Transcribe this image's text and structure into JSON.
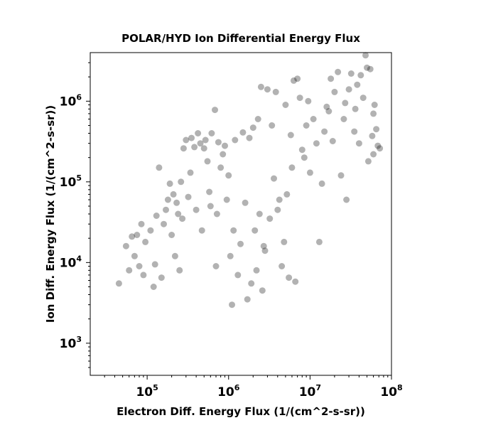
{
  "chart_data": {
    "type": "scatter",
    "title": "POLAR/HYD  Ion Differential Energy Flux",
    "xlabel": "Electron Diff. Energy Flux (1/(cm^2-s-sr))",
    "ylabel": "Ion Diff. Energy Flux (1/(cm^2-s-sr))",
    "x_scale": "log",
    "y_scale": "log",
    "xlim": [
      20000,
      100000000
    ],
    "ylim": [
      400,
      4000000
    ],
    "x_ticks": [
      {
        "value": 100000,
        "base": "10",
        "exp": "5"
      },
      {
        "value": 1000000,
        "base": "10",
        "exp": "6"
      },
      {
        "value": 10000000,
        "base": "10",
        "exp": "7"
      },
      {
        "value": 100000000,
        "base": "10",
        "exp": "8"
      }
    ],
    "y_ticks": [
      {
        "value": 1000,
        "base": "10",
        "exp": "3"
      },
      {
        "value": 10000,
        "base": "10",
        "exp": "4"
      },
      {
        "value": 100000,
        "base": "10",
        "exp": "5"
      },
      {
        "value": 1000000,
        "base": "10",
        "exp": "6"
      }
    ],
    "grid": false,
    "marker_color": "#000000",
    "marker_alpha": 0.3,
    "series": [
      {
        "points": [
          [
            45000,
            5500
          ],
          [
            55000,
            16000
          ],
          [
            60000,
            8000
          ],
          [
            65000,
            21000
          ],
          [
            70000,
            12000
          ],
          [
            75000,
            22000
          ],
          [
            80000,
            9000
          ],
          [
            85000,
            30000
          ],
          [
            90000,
            7000
          ],
          [
            95000,
            18000
          ],
          [
            110000,
            25000
          ],
          [
            120000,
            5000
          ],
          [
            125000,
            9500
          ],
          [
            130000,
            38000
          ],
          [
            140000,
            150000
          ],
          [
            150000,
            6500
          ],
          [
            160000,
            30000
          ],
          [
            170000,
            45000
          ],
          [
            180000,
            60000
          ],
          [
            190000,
            95000
          ],
          [
            200000,
            22000
          ],
          [
            210000,
            70000
          ],
          [
            220000,
            12000
          ],
          [
            230000,
            55000
          ],
          [
            240000,
            40000
          ],
          [
            250000,
            8000
          ],
          [
            260000,
            100000
          ],
          [
            270000,
            35000
          ],
          [
            280000,
            260000
          ],
          [
            300000,
            330000
          ],
          [
            320000,
            65000
          ],
          [
            340000,
            130000
          ],
          [
            350000,
            350000
          ],
          [
            380000,
            270000
          ],
          [
            400000,
            45000
          ],
          [
            420000,
            400000
          ],
          [
            450000,
            300000
          ],
          [
            470000,
            25000
          ],
          [
            500000,
            260000
          ],
          [
            520000,
            330000
          ],
          [
            550000,
            180000
          ],
          [
            580000,
            75000
          ],
          [
            600000,
            50000
          ],
          [
            620000,
            400000
          ],
          [
            680000,
            780000
          ],
          [
            700000,
            9000
          ],
          [
            720000,
            40000
          ],
          [
            750000,
            310000
          ],
          [
            800000,
            150000
          ],
          [
            850000,
            220000
          ],
          [
            900000,
            280000
          ],
          [
            950000,
            60000
          ],
          [
            1000000,
            120000
          ],
          [
            1050000,
            12000
          ],
          [
            1100000,
            3000
          ],
          [
            1150000,
            25000
          ],
          [
            1200000,
            330000
          ],
          [
            1300000,
            7000
          ],
          [
            1400000,
            17000
          ],
          [
            1500000,
            410000
          ],
          [
            1600000,
            55000
          ],
          [
            1700000,
            3500
          ],
          [
            1800000,
            350000
          ],
          [
            1900000,
            5500
          ],
          [
            2000000,
            470000
          ],
          [
            2100000,
            25000
          ],
          [
            2200000,
            8000
          ],
          [
            2300000,
            600000
          ],
          [
            2400000,
            40000
          ],
          [
            2500000,
            1500000
          ],
          [
            2600000,
            4500
          ],
          [
            2700000,
            16000
          ],
          [
            2800000,
            14000
          ],
          [
            3000000,
            1400000
          ],
          [
            3200000,
            35000
          ],
          [
            3400000,
            500000
          ],
          [
            3600000,
            110000
          ],
          [
            3800000,
            1300000
          ],
          [
            4000000,
            45000
          ],
          [
            4200000,
            60000
          ],
          [
            4500000,
            9000
          ],
          [
            4800000,
            18000
          ],
          [
            5000000,
            900000
          ],
          [
            5200000,
            70000
          ],
          [
            5500000,
            6500
          ],
          [
            5800000,
            380000
          ],
          [
            6000000,
            150000
          ],
          [
            6300000,
            1800000
          ],
          [
            6600000,
            5800
          ],
          [
            7000000,
            1900000
          ],
          [
            7500000,
            1100000
          ],
          [
            8000000,
            250000
          ],
          [
            8500000,
            200000
          ],
          [
            9000000,
            500000
          ],
          [
            9500000,
            1000000
          ],
          [
            10000000,
            130000
          ],
          [
            11000000,
            600000
          ],
          [
            12000000,
            300000
          ],
          [
            13000000,
            18000
          ],
          [
            14000000,
            95000
          ],
          [
            15000000,
            420000
          ],
          [
            16000000,
            850000
          ],
          [
            17000000,
            750000
          ],
          [
            18000000,
            1900000
          ],
          [
            19000000,
            320000
          ],
          [
            20000000,
            1300000
          ],
          [
            22000000,
            2300000
          ],
          [
            24000000,
            120000
          ],
          [
            26000000,
            600000
          ],
          [
            28000000,
            60000
          ],
          [
            30000000,
            1400000
          ],
          [
            32000000,
            2200000
          ],
          [
            35000000,
            420000
          ],
          [
            38000000,
            1600000
          ],
          [
            40000000,
            300000
          ],
          [
            45000000,
            1100000
          ],
          [
            48000000,
            3700000
          ],
          [
            50000000,
            2600000
          ],
          [
            52000000,
            180000
          ],
          [
            55000000,
            2500000
          ],
          [
            58000000,
            370000
          ],
          [
            60000000,
            220000
          ],
          [
            62000000,
            900000
          ],
          [
            65000000,
            450000
          ],
          [
            68000000,
            280000
          ],
          [
            72000000,
            260000
          ],
          [
            60000000,
            700000
          ],
          [
            42000000,
            2100000
          ],
          [
            36000000,
            800000
          ],
          [
            27000000,
            950000
          ]
        ]
      }
    ]
  }
}
